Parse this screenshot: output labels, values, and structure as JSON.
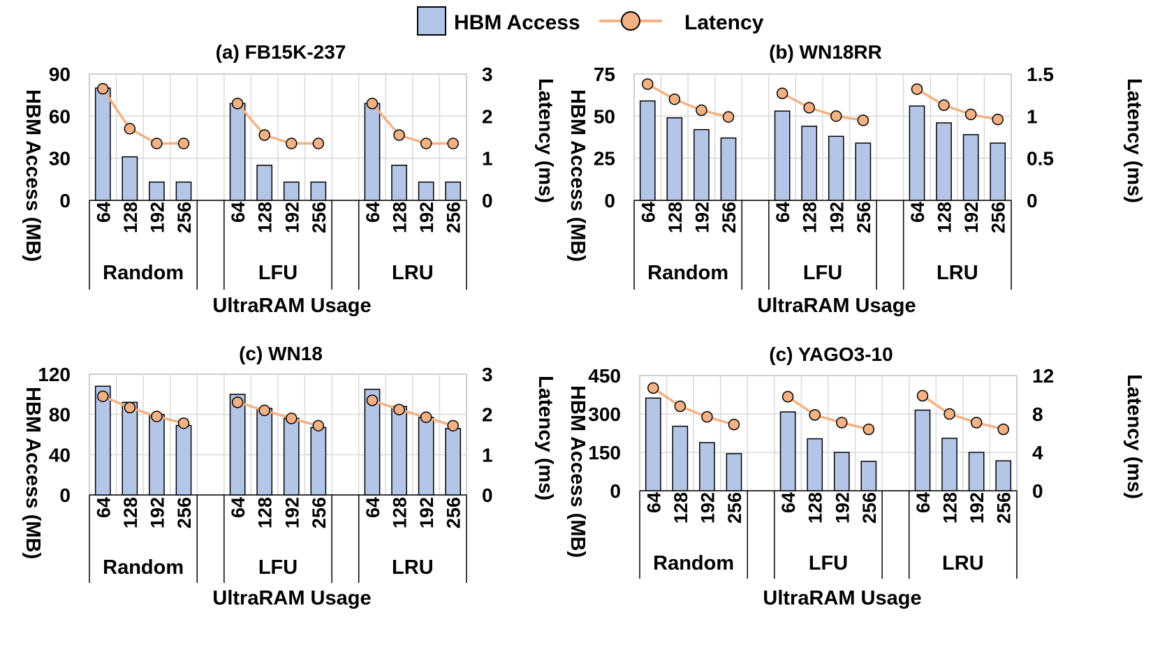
{
  "legend": {
    "bar_label": "HBM Access",
    "line_label": "Latency"
  },
  "colors": {
    "bar_fill": "#b4c6e7",
    "bar_stroke": "#000000",
    "line": "#f4b183",
    "marker_fill": "#f4b183",
    "marker_stroke": "#000000",
    "grid": "#d9d9d9",
    "frame": "#bfbfbf"
  },
  "chart_data": [
    {
      "type": "bar",
      "title": "(a) FB15K-237",
      "xlabel": "UltraRAM Usage",
      "ylabel": "HBM Access (MB)",
      "y2label": "Latency (ms)",
      "groups": [
        "Random",
        "LFU",
        "LRU"
      ],
      "categories": [
        "64",
        "128",
        "192",
        "256"
      ],
      "ylim": [
        0,
        90
      ],
      "yticks": [
        0,
        30,
        60,
        90
      ],
      "y2lim": [
        0,
        3
      ],
      "y2ticks": [
        "0",
        "1",
        "2",
        "3"
      ],
      "series": [
        {
          "name": "HBM Access",
          "axis": "left",
          "values": [
            [
              80,
              31,
              13,
              13
            ],
            [
              69,
              25,
              13,
              13
            ],
            [
              69,
              25,
              13,
              13
            ]
          ]
        },
        {
          "name": "Latency",
          "axis": "right",
          "values": [
            [
              2.65,
              1.7,
              1.35,
              1.35
            ],
            [
              2.3,
              1.55,
              1.35,
              1.35
            ],
            [
              2.3,
              1.55,
              1.35,
              1.35
            ]
          ]
        }
      ]
    },
    {
      "type": "bar",
      "title": "(b) WN18RR",
      "xlabel": "UltraRAM Usage",
      "ylabel": "HBM Access (MB)",
      "y2label": "Latency (ms)",
      "groups": [
        "Random",
        "LFU",
        "LRU"
      ],
      "categories": [
        "64",
        "128",
        "192",
        "256"
      ],
      "ylim": [
        0,
        75
      ],
      "yticks": [
        0,
        25,
        50,
        75
      ],
      "y2lim": [
        0,
        1.5
      ],
      "y2ticks": [
        "0",
        "0.5",
        "1",
        "1.5"
      ],
      "series": [
        {
          "name": "HBM Access",
          "axis": "left",
          "values": [
            [
              59,
              49,
              42,
              37
            ],
            [
              53,
              44,
              38,
              34
            ],
            [
              56,
              46,
              39,
              34
            ]
          ]
        },
        {
          "name": "Latency",
          "axis": "right",
          "values": [
            [
              1.38,
              1.2,
              1.07,
              0.99
            ],
            [
              1.27,
              1.1,
              1.0,
              0.95
            ],
            [
              1.32,
              1.13,
              1.02,
              0.96
            ]
          ]
        }
      ]
    },
    {
      "type": "bar",
      "title": "(c) WN18",
      "xlabel": "UltraRAM Usage",
      "ylabel": "HBM Access (MB)",
      "y2label": "Latency (ms)",
      "groups": [
        "Random",
        "LFU",
        "LRU"
      ],
      "categories": [
        "64",
        "128",
        "192",
        "256"
      ],
      "ylim": [
        0,
        120
      ],
      "yticks": [
        0,
        40,
        80,
        120
      ],
      "y2lim": [
        0,
        3
      ],
      "y2ticks": [
        "0",
        "1",
        "2",
        "3"
      ],
      "series": [
        {
          "name": "HBM Access",
          "axis": "left",
          "values": [
            [
              108,
              92,
              80,
              69
            ],
            [
              100,
              86,
              76,
              67
            ],
            [
              105,
              88,
              77,
              66
            ]
          ]
        },
        {
          "name": "Latency",
          "axis": "right",
          "values": [
            [
              2.45,
              2.17,
              1.95,
              1.78
            ],
            [
              2.3,
              2.1,
              1.9,
              1.72
            ],
            [
              2.35,
              2.12,
              1.93,
              1.72
            ]
          ]
        }
      ]
    },
    {
      "type": "bar",
      "title": "(c) YAGO3-10",
      "xlabel": "UltraRAM Usage",
      "ylabel": "HBM Access (MB)",
      "y2label": "Latency (ms)",
      "groups": [
        "Random",
        "LFU",
        "LRU"
      ],
      "categories": [
        "64",
        "128",
        "192",
        "256"
      ],
      "ylim": [
        0,
        450
      ],
      "yticks": [
        0,
        150,
        300,
        450
      ],
      "y2lim": [
        0,
        12
      ],
      "y2ticks": [
        "0",
        "4",
        "8",
        "12"
      ],
      "series": [
        {
          "name": "HBM Access",
          "axis": "left",
          "values": [
            [
              362,
              252,
              188,
              145
            ],
            [
              308,
              203,
              150,
              115
            ],
            [
              315,
              205,
              150,
              117
            ]
          ]
        },
        {
          "name": "Latency",
          "axis": "right",
          "values": [
            [
              10.7,
              8.8,
              7.7,
              6.9
            ],
            [
              9.8,
              7.9,
              7.1,
              6.4
            ],
            [
              9.9,
              8.0,
              7.1,
              6.4
            ]
          ]
        }
      ]
    }
  ]
}
